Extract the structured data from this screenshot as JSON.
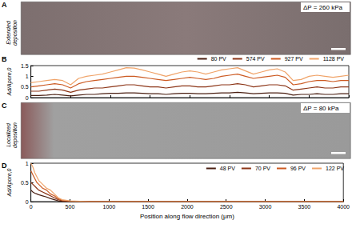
{
  "images": [
    {
      "panel": "A",
      "label": "Extended deposition",
      "annotation": "ΔP = 260 kPa"
    },
    {
      "panel": "C",
      "label": "Localized deposition",
      "annotation": "ΔP = 80 kPa"
    }
  ],
  "chart_data": [
    {
      "type": "line",
      "title": "B",
      "ylabel": "Ad/Apore,0",
      "x": [
        0,
        100,
        200,
        300,
        400,
        500,
        600,
        700,
        800,
        900,
        1000,
        1100,
        1200,
        1300,
        1400,
        1500,
        1600,
        1700,
        1800,
        1900,
        2000,
        2100,
        2200,
        2300,
        2400,
        2500,
        2600,
        2700,
        2800,
        2900,
        3000,
        3100,
        3200,
        3300,
        3400,
        3500,
        3600,
        3700,
        3800,
        3900,
        4000
      ],
      "series": [
        {
          "name": "80 PV",
          "color": "#4a1f12",
          "values": [
            0.1,
            0.1,
            0.12,
            0.15,
            0.12,
            0.08,
            0.12,
            0.15,
            0.15,
            0.18,
            0.2,
            0.2,
            0.22,
            0.22,
            0.2,
            0.18,
            0.18,
            0.15,
            0.18,
            0.2,
            0.2,
            0.18,
            0.18,
            0.2,
            0.22,
            0.22,
            0.25,
            0.22,
            0.18,
            0.2,
            0.22,
            0.22,
            0.2,
            0.12,
            0.15,
            0.15,
            0.18,
            0.15,
            0.15,
            0.18,
            0.18
          ]
        },
        {
          "name": "574 PV",
          "color": "#8c3517",
          "values": [
            0.3,
            0.3,
            0.35,
            0.4,
            0.35,
            0.25,
            0.35,
            0.4,
            0.45,
            0.45,
            0.5,
            0.55,
            0.6,
            0.6,
            0.55,
            0.5,
            0.5,
            0.45,
            0.5,
            0.55,
            0.55,
            0.5,
            0.5,
            0.55,
            0.6,
            0.6,
            0.65,
            0.6,
            0.5,
            0.55,
            0.6,
            0.6,
            0.55,
            0.35,
            0.4,
            0.45,
            0.5,
            0.45,
            0.45,
            0.5,
            0.5
          ]
        },
        {
          "name": "927 PV",
          "color": "#cc5a22",
          "values": [
            0.5,
            0.55,
            0.6,
            0.65,
            0.6,
            0.45,
            0.65,
            0.75,
            0.8,
            0.85,
            0.9,
            0.95,
            1.0,
            1.0,
            0.95,
            0.9,
            0.85,
            0.8,
            0.85,
            0.9,
            0.95,
            0.9,
            0.85,
            0.9,
            1.0,
            1.05,
            1.1,
            1.0,
            0.9,
            0.95,
            1.0,
            1.05,
            0.95,
            0.6,
            0.65,
            0.75,
            0.8,
            0.8,
            0.75,
            0.8,
            0.8
          ]
        },
        {
          "name": "1128 PV",
          "color": "#f0a46a",
          "values": [
            0.7,
            0.75,
            0.8,
            0.85,
            0.8,
            0.6,
            0.9,
            1.0,
            1.05,
            1.1,
            1.2,
            1.3,
            1.4,
            1.38,
            1.3,
            1.2,
            1.1,
            1.0,
            1.1,
            1.2,
            1.25,
            1.2,
            1.1,
            1.2,
            1.3,
            1.35,
            1.4,
            1.25,
            1.1,
            1.2,
            1.3,
            1.35,
            1.2,
            0.8,
            0.85,
            1.0,
            1.05,
            1.0,
            0.95,
            1.0,
            1.05
          ]
        }
      ],
      "xlim": [
        0,
        4000
      ],
      "xticks": [
        0,
        500,
        1000,
        1500,
        2000,
        2500,
        3000,
        3500,
        4000
      ],
      "ylim": [
        0,
        1.5
      ],
      "yticks": [
        0,
        0.5,
        1,
        1.5
      ],
      "tick_labels": "y",
      "legend": "top right"
    },
    {
      "type": "line",
      "title": "D",
      "xlabel": "Position along flow direction (μm)",
      "ylabel": "Ad/Apore,0",
      "x": [
        0,
        25,
        50,
        75,
        100,
        150,
        200,
        250,
        300,
        350,
        400,
        500,
        750,
        1000,
        1500,
        2000,
        2500,
        3000,
        3500,
        4000
      ],
      "series": [
        {
          "name": "48 PV",
          "color": "#4a1f12",
          "values": [
            0.3,
            0.25,
            0.22,
            0.2,
            0.18,
            0.15,
            0.12,
            0.08,
            0.05,
            0.02,
            0.01,
            0,
            0,
            0,
            0,
            0,
            0,
            0,
            0,
            0
          ]
        },
        {
          "name": "70 PV",
          "color": "#8c3517",
          "values": [
            0.5,
            0.45,
            0.4,
            0.35,
            0.3,
            0.25,
            0.2,
            0.15,
            0.1,
            0.05,
            0.02,
            0,
            0,
            0,
            0,
            0,
            0,
            0,
            0,
            0
          ]
        },
        {
          "name": "96 PV",
          "color": "#cc5a22",
          "values": [
            0.8,
            0.7,
            0.6,
            0.5,
            0.45,
            0.35,
            0.3,
            0.2,
            0.15,
            0.08,
            0.03,
            0.01,
            0,
            0,
            0,
            0,
            0,
            0,
            0,
            0
          ]
        },
        {
          "name": "122 PV",
          "color": "#f0a46a",
          "values": [
            1.0,
            0.9,
            0.75,
            0.65,
            0.55,
            0.45,
            0.35,
            0.3,
            0.2,
            0.1,
            0.05,
            0.02,
            0,
            0,
            0,
            0,
            0,
            0,
            0,
            0
          ]
        }
      ],
      "xlim": [
        0,
        4000
      ],
      "xticks": [
        0,
        500,
        1000,
        1500,
        2000,
        2500,
        3000,
        3500,
        4000
      ],
      "ylim": [
        0,
        1
      ],
      "yticks": [
        0,
        0.5,
        1
      ],
      "legend": "top right"
    }
  ]
}
